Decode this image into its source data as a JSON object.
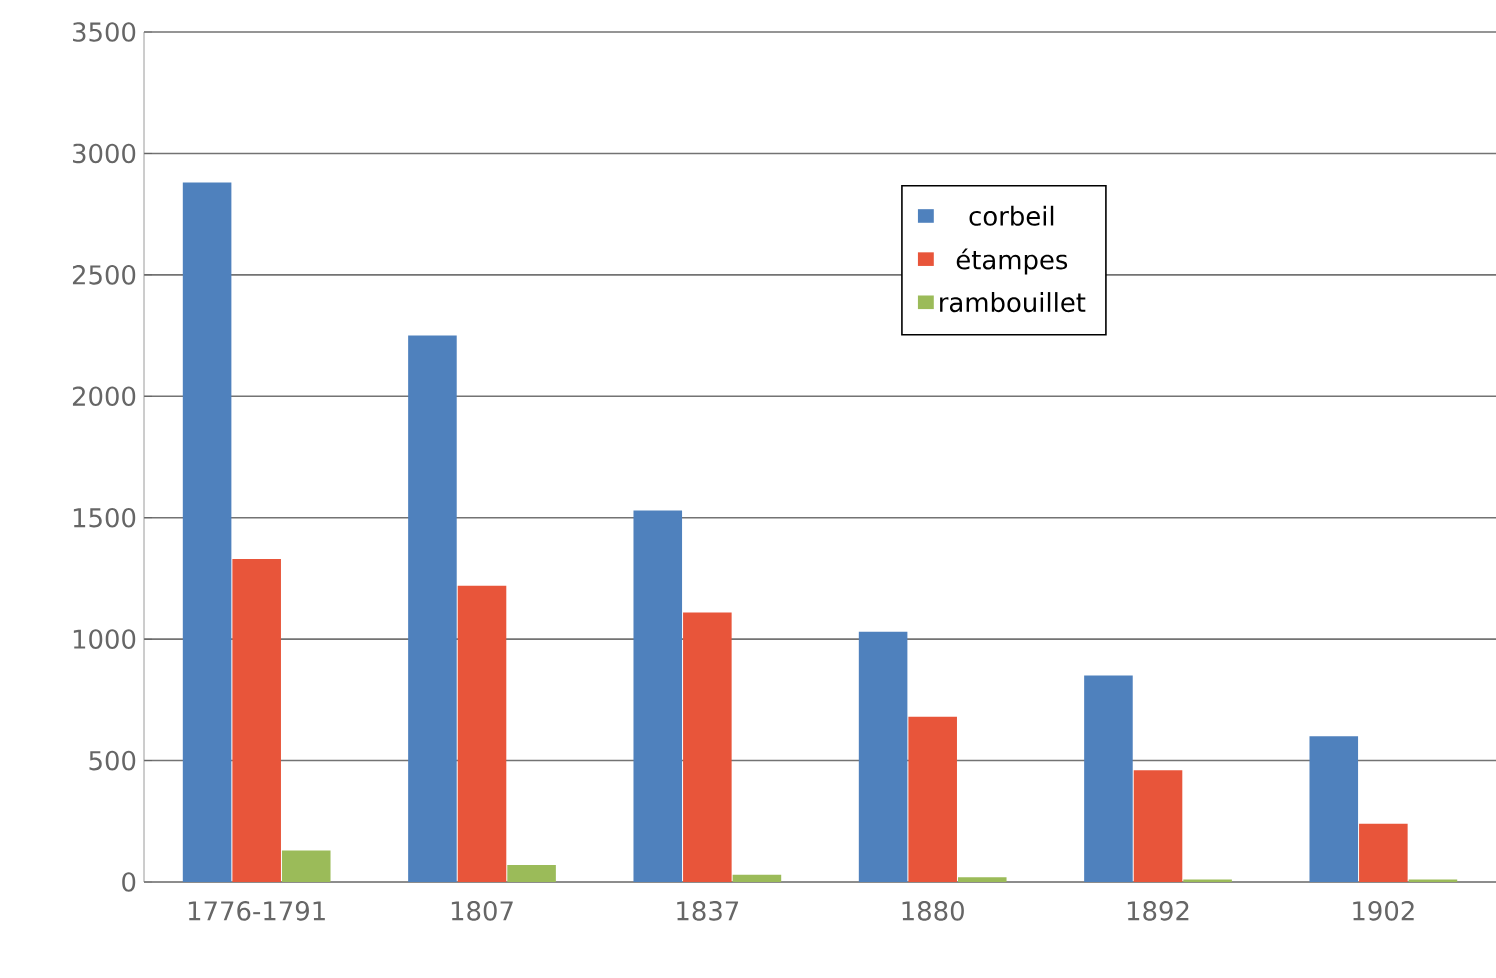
{
  "chart_data": {
    "type": "bar",
    "categories": [
      "1776-1791",
      "1807",
      "1837",
      "1880",
      "1892",
      "1902"
    ],
    "series": [
      {
        "name": "corbeil",
        "color": "#4f81bd",
        "values": [
          2880,
          2250,
          1530,
          1030,
          850,
          600
        ]
      },
      {
        "name": "étampes",
        "color": "#e8553a",
        "values": [
          1330,
          1220,
          1110,
          680,
          460,
          240
        ]
      },
      {
        "name": "rambouillet",
        "color": "#9bbb59",
        "values": [
          130,
          70,
          30,
          20,
          10,
          10
        ]
      }
    ],
    "ylim": [
      0,
      3500
    ],
    "yticks": [
      0,
      500,
      1000,
      1500,
      2000,
      2500,
      3000,
      3500
    ],
    "grid": "y",
    "legend": "top right"
  }
}
